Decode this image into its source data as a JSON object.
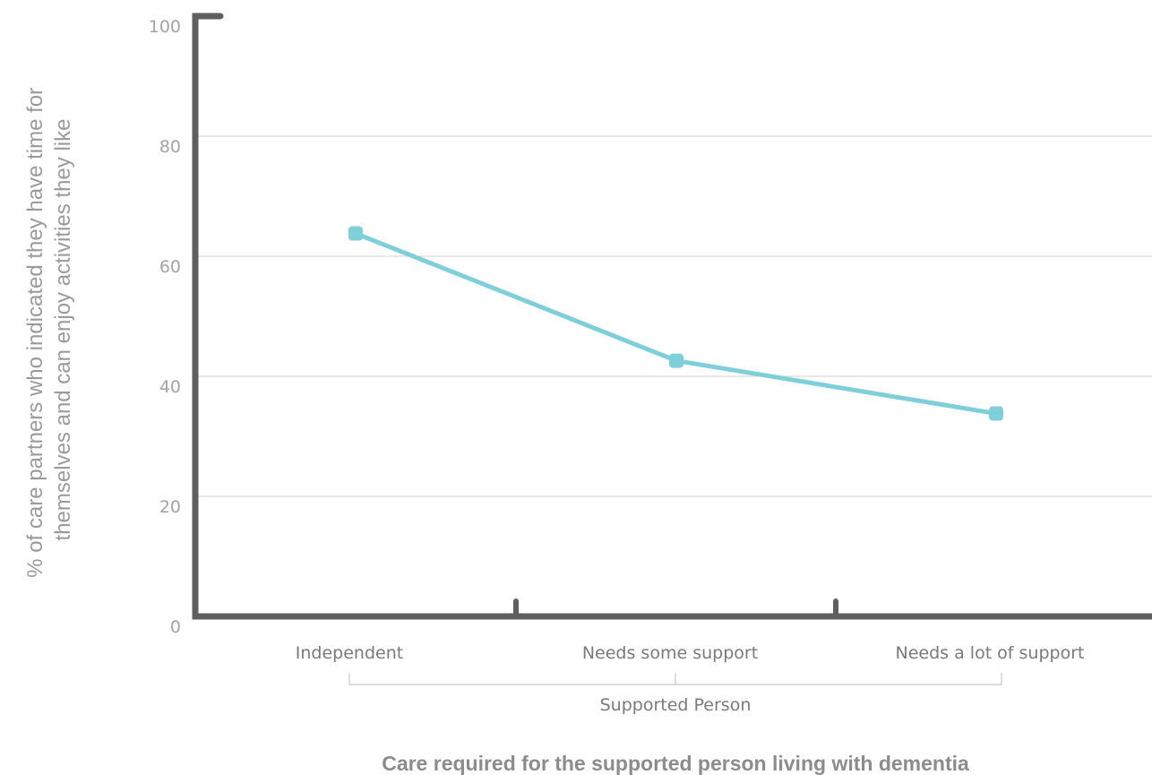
{
  "colors": {
    "series": "#7ecfd9",
    "axis": "#5f5f5f",
    "grid": "#d2d2d2",
    "bracket": "#c8c8c8"
  },
  "chart_data": {
    "type": "line",
    "categories": [
      "Independent",
      "Needs some support",
      "Needs a lot of support"
    ],
    "group_label": "Supported Person",
    "series": [
      {
        "values": [
          63.8,
          42.6,
          33.8
        ]
      }
    ],
    "ylabel_lines": [
      "% of care partners who indicated they have time for",
      "themselves and can enjoy activities they like"
    ],
    "xlabel": "Care required for the supported person living with dementia",
    "ylim": [
      0,
      100
    ],
    "yticks": [
      0,
      20,
      40,
      60,
      80,
      100
    ],
    "grid": true
  }
}
